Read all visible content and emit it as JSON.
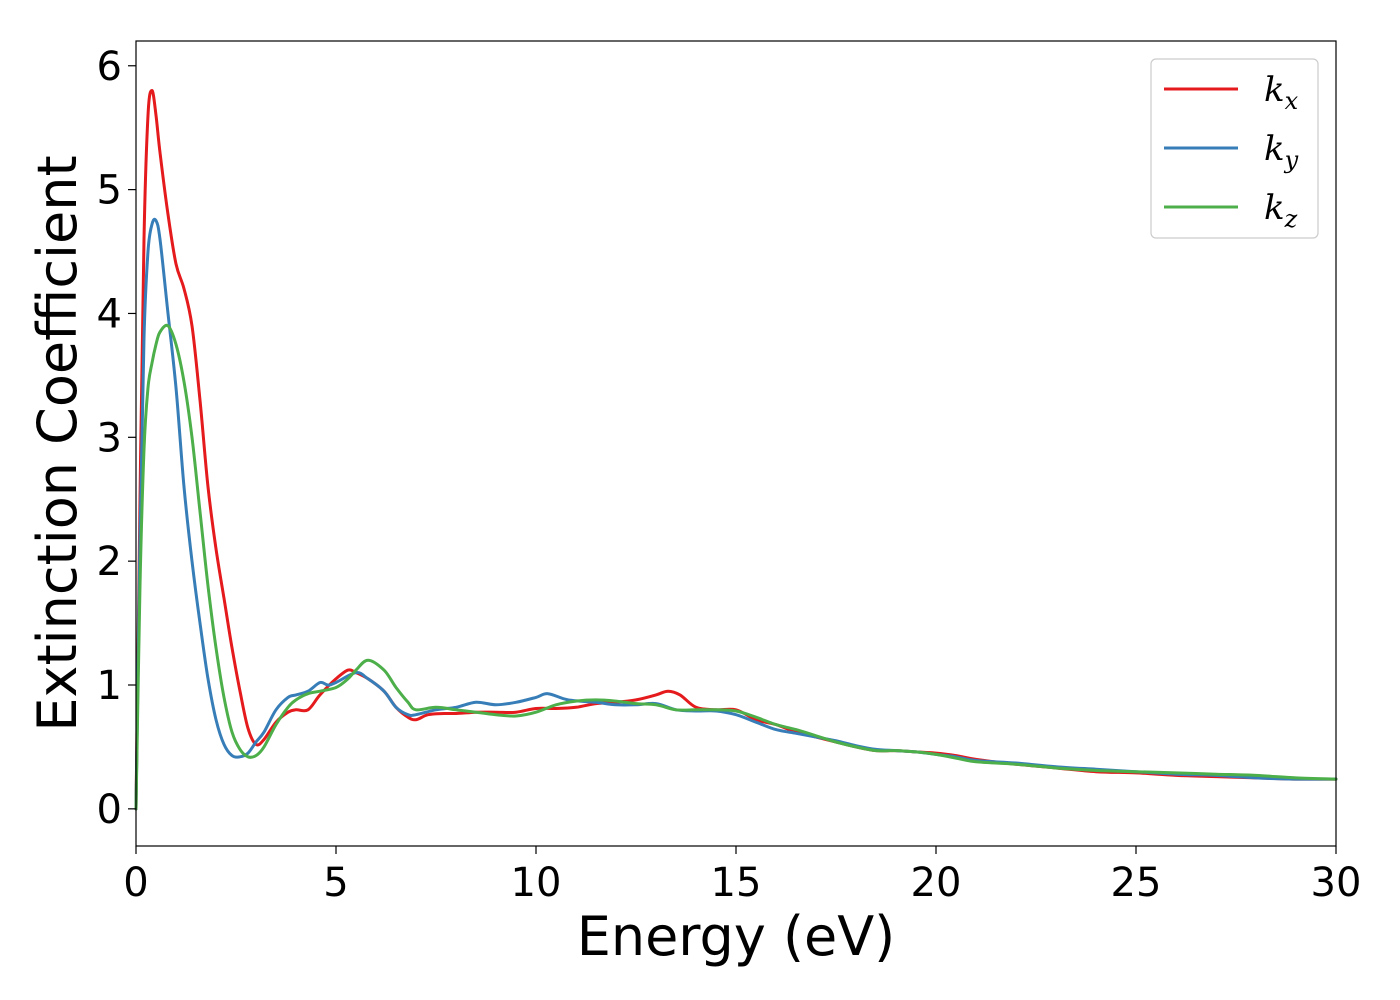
{
  "chart_data": {
    "type": "line",
    "title": "",
    "xlabel": "Energy (eV)",
    "ylabel": "Extinction Coefficient",
    "xlim": [
      0,
      30
    ],
    "ylim": [
      -0.3,
      6.2
    ],
    "xticks": [
      0,
      5,
      10,
      15,
      20,
      25,
      30
    ],
    "yticks": [
      0,
      1,
      2,
      3,
      4,
      5,
      6
    ],
    "grid": false,
    "legend_position": "top-right",
    "series": [
      {
        "name": "k_x",
        "label_main": "k",
        "label_sub": "x",
        "color": "#e41a1c",
        "x": [
          0,
          0.1,
          0.2,
          0.3,
          0.4,
          0.5,
          0.6,
          0.8,
          1.0,
          1.2,
          1.4,
          1.6,
          1.8,
          2.0,
          2.2,
          2.4,
          2.6,
          2.8,
          3.0,
          3.2,
          3.5,
          3.8,
          4.0,
          4.3,
          4.6,
          5.0,
          5.3,
          5.5,
          5.8,
          6.2,
          6.5,
          6.8,
          7.0,
          7.3,
          7.7,
          8.0,
          8.5,
          9.0,
          9.5,
          10.0,
          10.5,
          11.0,
          11.5,
          12.0,
          12.5,
          13.0,
          13.3,
          13.6,
          14.0,
          14.5,
          15.0,
          15.5,
          16.0,
          16.5,
          17.0,
          17.5,
          18.0,
          18.5,
          19.0,
          19.5,
          20.0,
          20.5,
          21.0,
          22.0,
          23.0,
          24.0,
          25.0,
          26.0,
          27.0,
          28.0,
          29.0,
          30.0
        ],
        "y": [
          0.0,
          2.5,
          4.6,
          5.6,
          5.8,
          5.6,
          5.3,
          4.8,
          4.4,
          4.2,
          3.9,
          3.3,
          2.6,
          2.1,
          1.7,
          1.3,
          0.95,
          0.65,
          0.52,
          0.56,
          0.7,
          0.78,
          0.8,
          0.8,
          0.92,
          1.05,
          1.12,
          1.1,
          1.05,
          0.95,
          0.82,
          0.74,
          0.72,
          0.76,
          0.77,
          0.77,
          0.78,
          0.78,
          0.78,
          0.81,
          0.81,
          0.82,
          0.85,
          0.86,
          0.88,
          0.92,
          0.95,
          0.92,
          0.82,
          0.8,
          0.8,
          0.72,
          0.68,
          0.62,
          0.58,
          0.54,
          0.5,
          0.47,
          0.47,
          0.46,
          0.45,
          0.43,
          0.4,
          0.36,
          0.33,
          0.3,
          0.29,
          0.27,
          0.26,
          0.25,
          0.24,
          0.24
        ]
      },
      {
        "name": "k_y",
        "label_main": "k",
        "label_sub": "y",
        "color": "#377eb8",
        "x": [
          0,
          0.1,
          0.2,
          0.3,
          0.4,
          0.5,
          0.6,
          0.8,
          1.0,
          1.2,
          1.4,
          1.6,
          1.8,
          2.0,
          2.2,
          2.4,
          2.6,
          2.8,
          3.0,
          3.2,
          3.5,
          3.8,
          4.0,
          4.3,
          4.6,
          4.8,
          5.0,
          5.5,
          5.8,
          6.2,
          6.5,
          6.8,
          7.0,
          7.5,
          8.0,
          8.5,
          9.0,
          9.5,
          10.0,
          10.3,
          10.8,
          11.5,
          12.0,
          12.5,
          13.0,
          13.5,
          14.0,
          14.5,
          15.0,
          15.5,
          16.0,
          16.5,
          17.0,
          17.5,
          18.0,
          18.5,
          19.0,
          19.5,
          20.0,
          20.5,
          21.0,
          22.0,
          23.0,
          24.0,
          25.0,
          26.0,
          27.0,
          28.0,
          29.0,
          30.0
        ],
        "y": [
          0.0,
          2.2,
          3.8,
          4.5,
          4.72,
          4.75,
          4.6,
          4.0,
          3.4,
          2.6,
          2.0,
          1.5,
          1.05,
          0.72,
          0.52,
          0.43,
          0.42,
          0.45,
          0.54,
          0.62,
          0.8,
          0.9,
          0.92,
          0.95,
          1.02,
          1.0,
          1.02,
          1.1,
          1.05,
          0.95,
          0.82,
          0.76,
          0.76,
          0.8,
          0.82,
          0.86,
          0.84,
          0.86,
          0.9,
          0.93,
          0.88,
          0.86,
          0.84,
          0.84,
          0.85,
          0.8,
          0.79,
          0.79,
          0.76,
          0.7,
          0.64,
          0.61,
          0.58,
          0.55,
          0.51,
          0.48,
          0.47,
          0.46,
          0.44,
          0.42,
          0.39,
          0.37,
          0.34,
          0.32,
          0.3,
          0.28,
          0.27,
          0.25,
          0.24,
          0.24
        ]
      },
      {
        "name": "k_z",
        "label_main": "k",
        "label_sub": "z",
        "color": "#4daf4a",
        "x": [
          0,
          0.1,
          0.2,
          0.3,
          0.4,
          0.5,
          0.6,
          0.8,
          1.0,
          1.2,
          1.4,
          1.6,
          1.8,
          2.0,
          2.2,
          2.4,
          2.6,
          2.8,
          3.0,
          3.2,
          3.5,
          3.8,
          4.0,
          4.3,
          4.6,
          5.0,
          5.3,
          5.5,
          5.8,
          6.2,
          6.5,
          6.8,
          7.0,
          7.5,
          8.0,
          8.5,
          9.0,
          9.5,
          10.0,
          10.5,
          11.0,
          11.5,
          12.0,
          12.5,
          13.0,
          13.5,
          14.0,
          14.5,
          15.0,
          15.5,
          16.0,
          16.5,
          17.0,
          17.5,
          18.0,
          18.5,
          19.0,
          19.5,
          20.0,
          20.5,
          21.0,
          22.0,
          23.0,
          24.0,
          25.0,
          26.0,
          27.0,
          28.0,
          29.0,
          30.0
        ],
        "y": [
          0.0,
          1.8,
          2.9,
          3.4,
          3.6,
          3.75,
          3.85,
          3.9,
          3.75,
          3.45,
          3.0,
          2.4,
          1.8,
          1.3,
          0.9,
          0.62,
          0.48,
          0.42,
          0.43,
          0.5,
          0.68,
          0.82,
          0.88,
          0.93,
          0.95,
          0.98,
          1.05,
          1.12,
          1.2,
          1.12,
          0.98,
          0.86,
          0.8,
          0.82,
          0.8,
          0.78,
          0.76,
          0.75,
          0.78,
          0.84,
          0.87,
          0.88,
          0.87,
          0.85,
          0.84,
          0.8,
          0.8,
          0.8,
          0.79,
          0.74,
          0.68,
          0.64,
          0.59,
          0.54,
          0.5,
          0.47,
          0.47,
          0.46,
          0.44,
          0.41,
          0.38,
          0.36,
          0.33,
          0.31,
          0.3,
          0.29,
          0.28,
          0.27,
          0.25,
          0.24
        ]
      }
    ]
  }
}
